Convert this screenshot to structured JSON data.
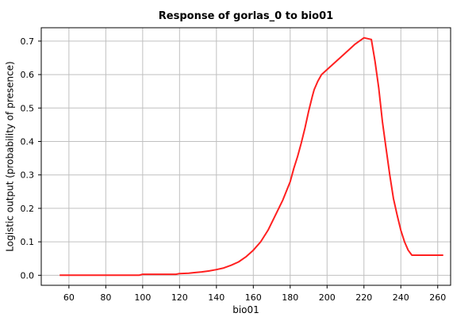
{
  "chart_data": {
    "type": "line",
    "title": "Response of gorlas_0 to bio01",
    "xlabel": "bio01",
    "ylabel": "Logistic output (probability of presence)",
    "xlim": [
      45,
      267
    ],
    "ylim": [
      -0.03,
      0.74
    ],
    "xticks": [
      60,
      80,
      100,
      120,
      140,
      160,
      180,
      200,
      220,
      240,
      260
    ],
    "yticks": [
      0.0,
      0.1,
      0.2,
      0.3,
      0.4,
      0.5,
      0.6,
      0.7
    ],
    "ytick_labels": [
      "0.0",
      "0.1",
      "0.2",
      "0.3",
      "0.4",
      "0.5",
      "0.6",
      "0.7"
    ],
    "grid": true,
    "colors": {
      "line": "#ff2020",
      "grid": "#c0c0c0",
      "frame": "#000000"
    },
    "series": [
      {
        "x": [
          55,
          70,
          90,
          98,
          100,
          110,
          118,
          120,
          125,
          128,
          132,
          136,
          140,
          144,
          148,
          152,
          156,
          160,
          164,
          168,
          172,
          176,
          180,
          182,
          184,
          186,
          188,
          190,
          192,
          193,
          195,
          197,
          200,
          205,
          210,
          215,
          220,
          224,
          226,
          228,
          230,
          232,
          234,
          236,
          238,
          240,
          242,
          244,
          246,
          250,
          255,
          263
        ],
        "y": [
          0.0,
          0.0,
          0.0,
          0.0,
          0.003,
          0.003,
          0.003,
          0.005,
          0.006,
          0.008,
          0.01,
          0.013,
          0.017,
          0.022,
          0.03,
          0.04,
          0.055,
          0.075,
          0.1,
          0.135,
          0.18,
          0.225,
          0.28,
          0.32,
          0.355,
          0.395,
          0.44,
          0.49,
          0.535,
          0.555,
          0.58,
          0.6,
          0.615,
          0.64,
          0.665,
          0.69,
          0.71,
          0.705,
          0.64,
          0.56,
          0.46,
          0.38,
          0.3,
          0.23,
          0.18,
          0.135,
          0.1,
          0.075,
          0.06,
          0.06,
          0.06,
          0.06
        ]
      }
    ]
  }
}
